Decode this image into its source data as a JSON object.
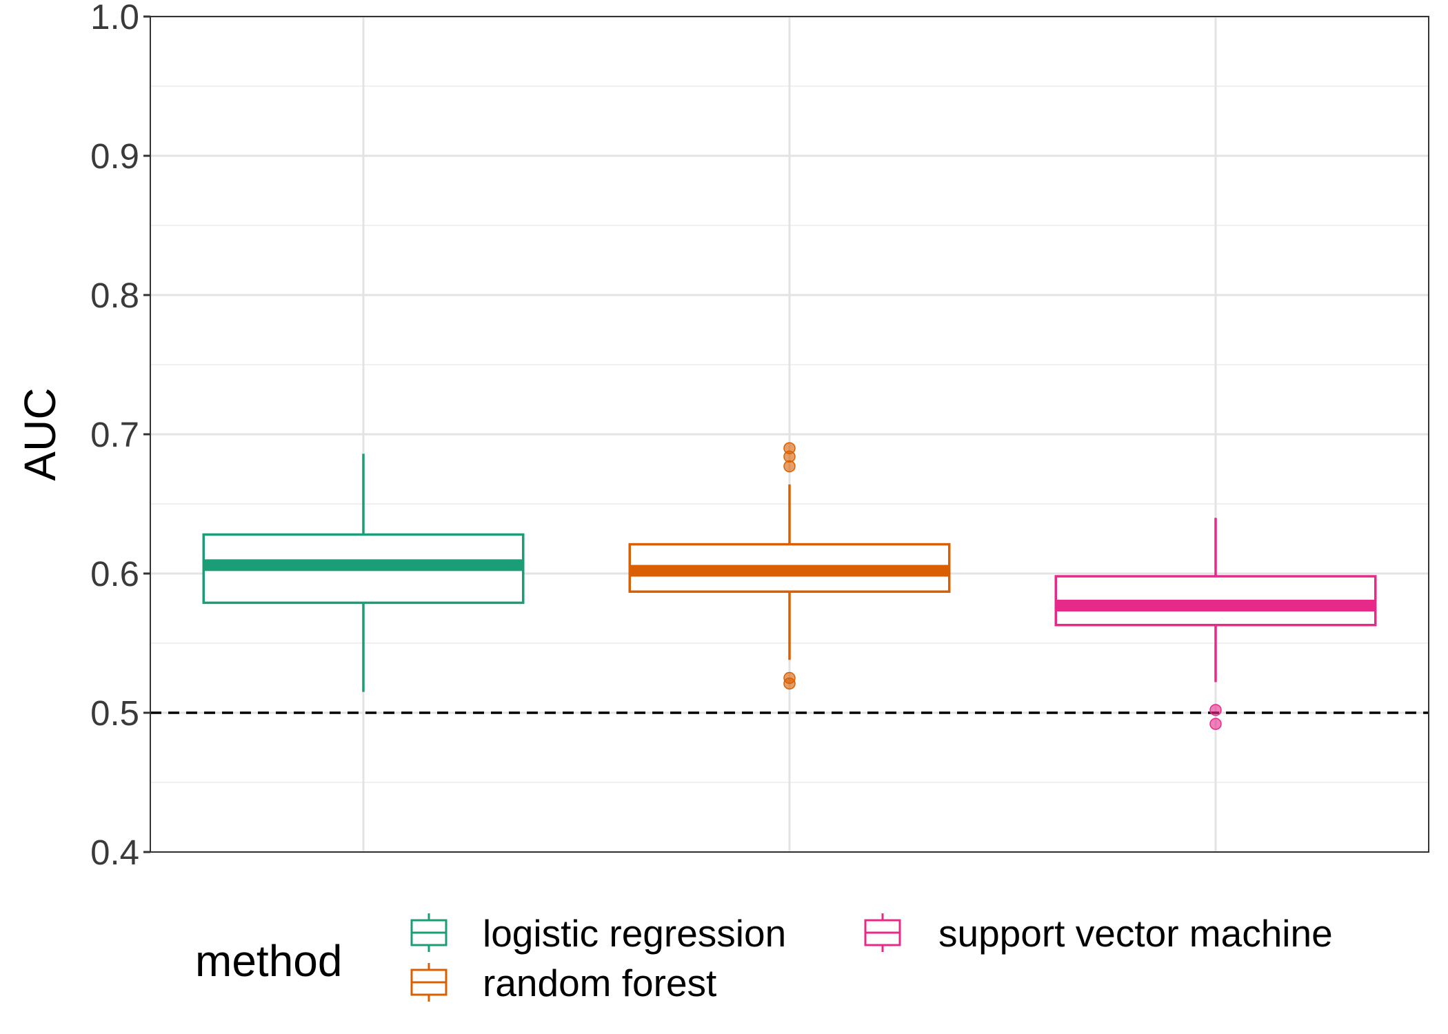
{
  "chart_data": {
    "type": "boxplot",
    "ylabel": "AUC",
    "ylim": [
      0.4,
      1.0
    ],
    "yticks": [
      0.4,
      0.5,
      0.6,
      0.7,
      0.8,
      0.9,
      1.0
    ],
    "ytick_labels": [
      "0.4",
      "0.5",
      "0.6",
      "0.7",
      "0.8",
      "0.9",
      "1.0"
    ],
    "grid": true,
    "reference_line": {
      "y": 0.5,
      "style": "dashed",
      "color": "#000000"
    },
    "legend": {
      "title": "method",
      "position": "bottom"
    },
    "series": [
      {
        "name": "logistic regression",
        "color": "#1b9e77",
        "whisker_low": 0.515,
        "q1": 0.579,
        "median": 0.606,
        "q3": 0.628,
        "whisker_high": 0.686,
        "outliers": []
      },
      {
        "name": "random forest",
        "color": "#d95f02",
        "whisker_low": 0.538,
        "q1": 0.587,
        "median": 0.602,
        "q3": 0.621,
        "whisker_high": 0.664,
        "outliers": [
          0.69,
          0.684,
          0.677,
          0.525,
          0.521
        ]
      },
      {
        "name": "support vector machine",
        "color": "#e7298a",
        "whisker_low": 0.522,
        "q1": 0.563,
        "median": 0.577,
        "q3": 0.598,
        "whisker_high": 0.64,
        "outliers": [
          0.502,
          0.492
        ]
      }
    ]
  }
}
